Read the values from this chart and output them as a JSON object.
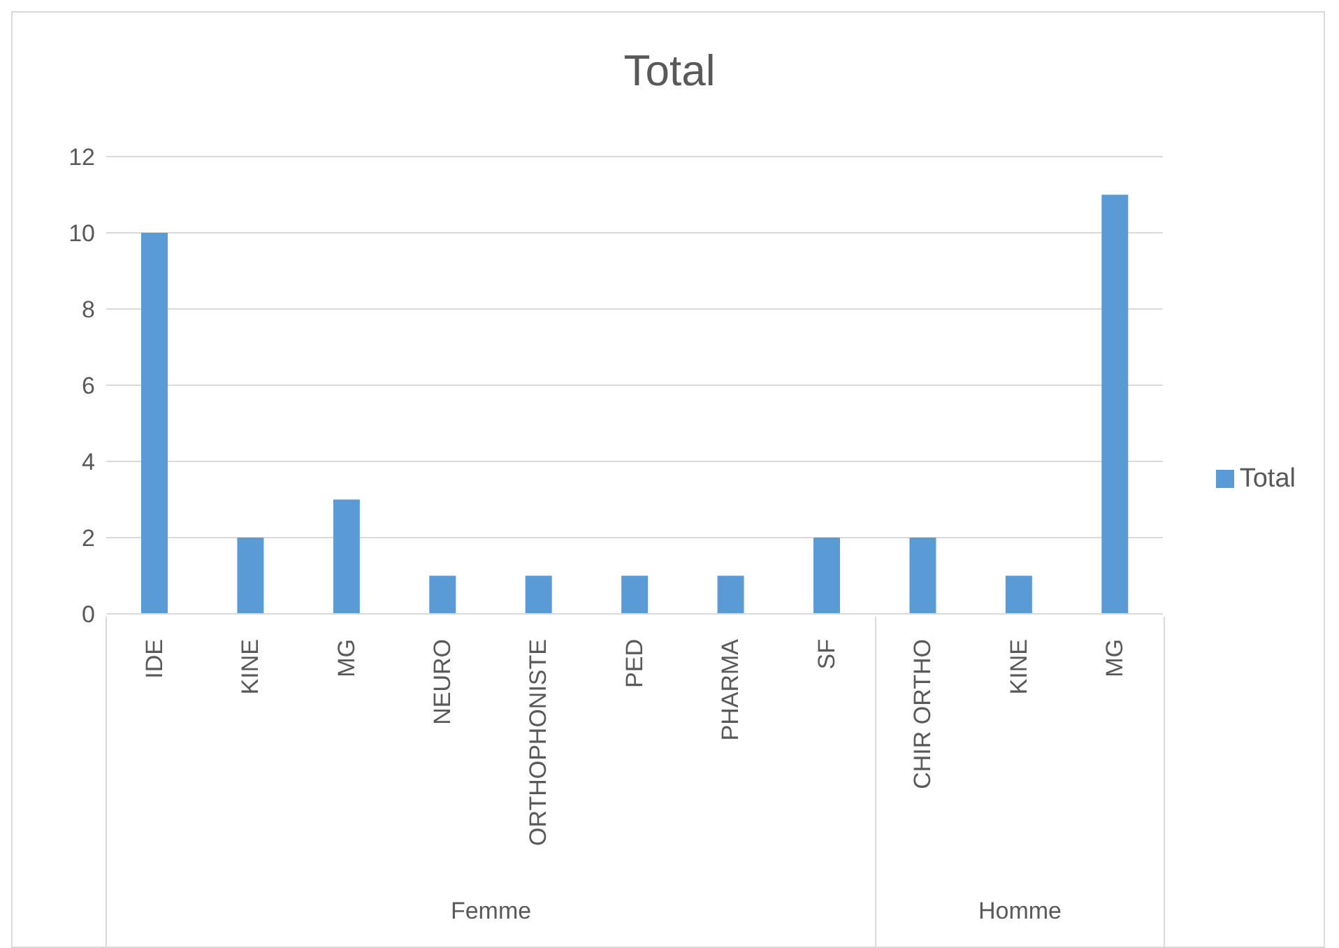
{
  "chart_data": {
    "type": "bar",
    "title": "Total",
    "categories": [
      "IDE",
      "KINE",
      "MG",
      "NEURO",
      "ORTHOPHONISTE",
      "PED",
      "PHARMA",
      "SF",
      "CHIR ORTHO",
      "KINE",
      "MG"
    ],
    "series": [
      {
        "name": "Total",
        "color": "#5b9bd5",
        "values": [
          10,
          2,
          3,
          1,
          1,
          1,
          1,
          2,
          2,
          1,
          11
        ]
      }
    ],
    "ylim": [
      0,
      12
    ],
    "yticks": [
      0,
      2,
      4,
      6,
      8,
      10,
      12
    ],
    "grid": "y",
    "legend": "right",
    "annotations": [
      "Femme",
      "Homme"
    ]
  }
}
